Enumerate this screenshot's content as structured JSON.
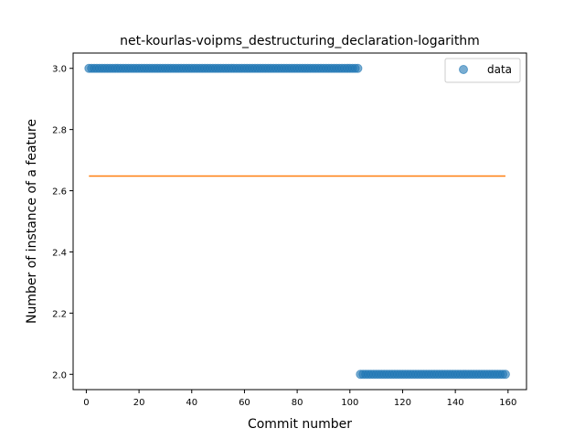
{
  "chart_data": {
    "type": "scatter",
    "title": "net-kourlas-voipms_destructuring_declaration-logarithm",
    "xlabel": "Commit number",
    "ylabel": "Number of instance of a feature",
    "xlim": [
      -5,
      167
    ],
    "ylim": [
      1.95,
      3.05
    ],
    "xticks": [
      "0",
      "20",
      "40",
      "60",
      "80",
      "100",
      "120",
      "140",
      "160"
    ],
    "yticks": [
      "2.0",
      "2.2",
      "2.4",
      "2.6",
      "2.8",
      "3.0"
    ],
    "grid": false,
    "legend_position": "top-right",
    "series": [
      {
        "name": "data",
        "kind": "scatter",
        "color": "#1f77b4",
        "segments": [
          {
            "x_start": 1,
            "x_end": 103,
            "y": 3.0
          },
          {
            "x_start": 104,
            "x_end": 159,
            "y": 2.0
          }
        ]
      },
      {
        "kind": "line",
        "color": "#ff7f0e",
        "x": [
          1,
          159
        ],
        "y": [
          2.648,
          2.648
        ]
      }
    ]
  }
}
